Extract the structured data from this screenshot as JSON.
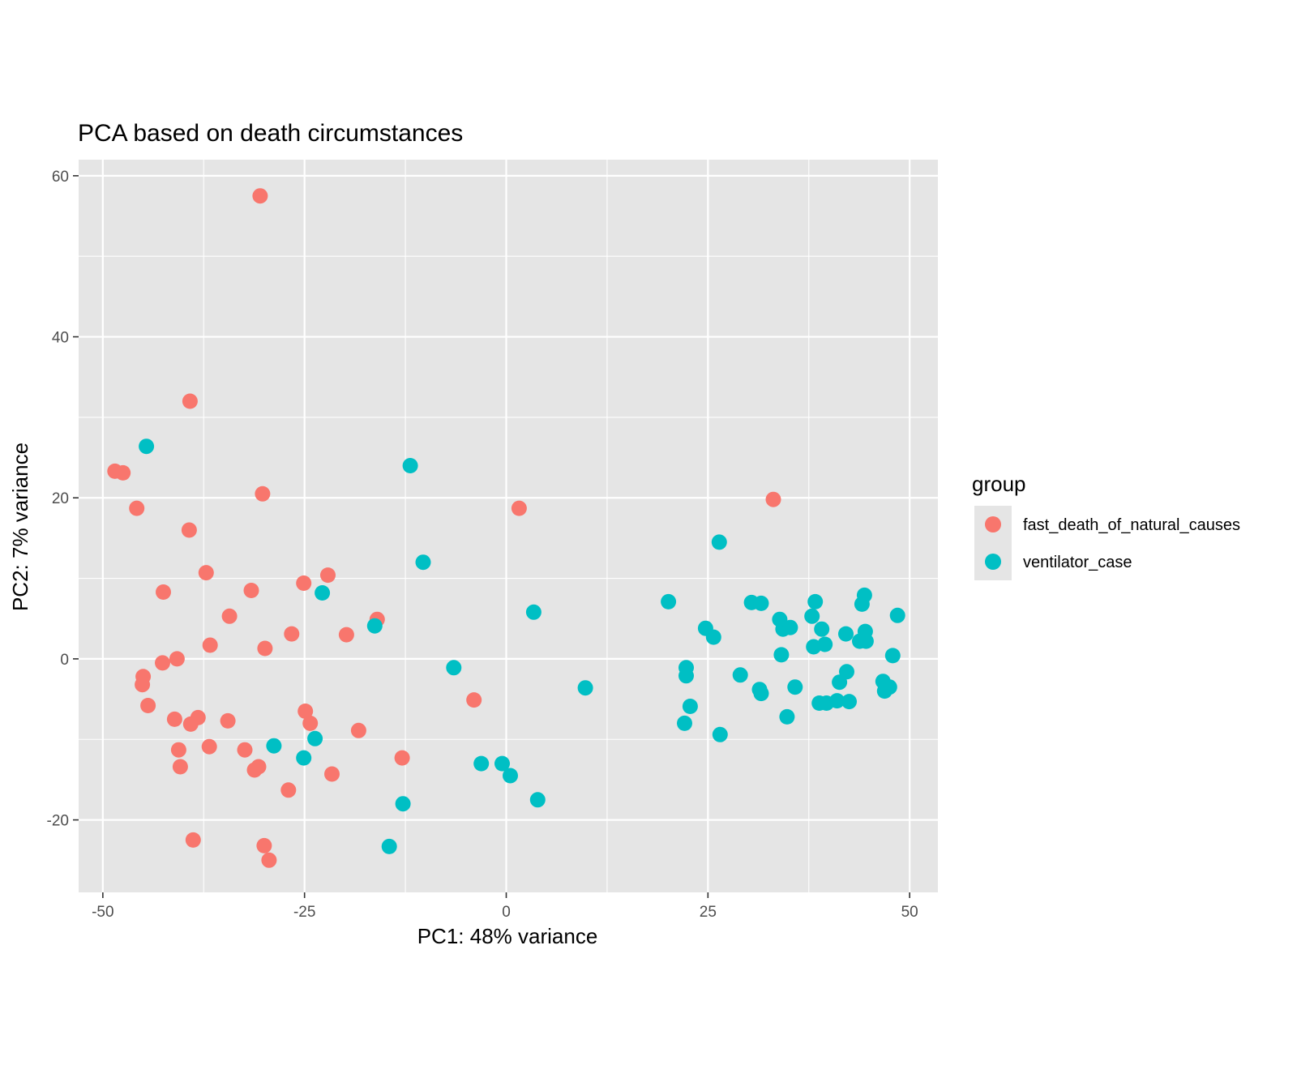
{
  "chart_data": {
    "type": "scatter",
    "title": "PCA based on death circumstances",
    "xlabel": "PC1: 48% variance",
    "ylabel": "PC2: 7% variance",
    "xlim": [
      -53,
      53.5
    ],
    "ylim": [
      -29,
      62
    ],
    "x_ticks": [
      -50,
      -25,
      0,
      25,
      50
    ],
    "x_tick_labels": [
      "-50",
      "-25",
      "0",
      "25",
      "50"
    ],
    "y_ticks": [
      -20,
      0,
      20,
      40,
      60
    ],
    "y_tick_labels": [
      "-20",
      "0",
      "20",
      "40",
      "60"
    ],
    "grid": true,
    "legend": {
      "title": "group",
      "position": "right"
    },
    "colors": {
      "panel_bg": "#e5e5e5",
      "grid": "#ffffff",
      "fast_death_of_natural_causes": "#f8766d",
      "ventilator_case": "#00bfc4"
    },
    "series": [
      {
        "name": "fast_death_of_natural_causes",
        "color": "#f8766d",
        "points": [
          [
            -30.5,
            57.5
          ],
          [
            -39.2,
            32
          ],
          [
            -48.5,
            23.3
          ],
          [
            -47.5,
            23.1
          ],
          [
            -45.8,
            18.7
          ],
          [
            -30.2,
            20.5
          ],
          [
            -39.3,
            16
          ],
          [
            -37.2,
            10.7
          ],
          [
            -42.5,
            8.3
          ],
          [
            -31.6,
            8.5
          ],
          [
            -25.1,
            9.4
          ],
          [
            -22.1,
            10.4
          ],
          [
            -34.3,
            5.3
          ],
          [
            -26.6,
            3.1
          ],
          [
            -19.8,
            3
          ],
          [
            -16,
            4.9
          ],
          [
            -36.7,
            1.7
          ],
          [
            -29.9,
            1.3
          ],
          [
            -42.6,
            -0.5
          ],
          [
            -40.8,
            0
          ],
          [
            -45,
            -2.2
          ],
          [
            -45.1,
            -3.2
          ],
          [
            -44.4,
            -5.8
          ],
          [
            -24.9,
            -6.5
          ],
          [
            -24.3,
            -8
          ],
          [
            -41.1,
            -7.5
          ],
          [
            -38.2,
            -7.3
          ],
          [
            -39.1,
            -8.1
          ],
          [
            -34.5,
            -7.7
          ],
          [
            -18.3,
            -8.9
          ],
          [
            -40.6,
            -11.3
          ],
          [
            -36.8,
            -10.9
          ],
          [
            -32.4,
            -11.3
          ],
          [
            -30.7,
            -13.4
          ],
          [
            -31.2,
            -13.8
          ],
          [
            -40.4,
            -13.4
          ],
          [
            -21.6,
            -14.3
          ],
          [
            -12.9,
            -12.3
          ],
          [
            -27,
            -16.3
          ],
          [
            -38.8,
            -22.5
          ],
          [
            -30,
            -23.2
          ],
          [
            -29.4,
            -25
          ],
          [
            -4,
            -5.1
          ],
          [
            1.6,
            18.7
          ],
          [
            33.1,
            19.8
          ]
        ]
      },
      {
        "name": "ventilator_case",
        "color": "#00bfc4",
        "points": [
          [
            -44.6,
            26.4
          ],
          [
            -11.9,
            24
          ],
          [
            -10.3,
            12
          ],
          [
            -22.8,
            8.2
          ],
          [
            -16.3,
            4.1
          ],
          [
            -28.8,
            -10.8
          ],
          [
            -25.1,
            -12.3
          ],
          [
            -23.7,
            -9.9
          ],
          [
            -6.5,
            -1.1
          ],
          [
            3.4,
            5.8
          ],
          [
            -3.1,
            -13
          ],
          [
            -0.5,
            -13
          ],
          [
            0.5,
            -14.5
          ],
          [
            -12.8,
            -18
          ],
          [
            -14.5,
            -23.3
          ],
          [
            3.9,
            -17.5
          ],
          [
            9.8,
            -3.6
          ],
          [
            20.1,
            7.1
          ],
          [
            26.4,
            14.5
          ],
          [
            24.7,
            3.8
          ],
          [
            25.7,
            2.7
          ],
          [
            22.3,
            -1.1
          ],
          [
            22.3,
            -2.1
          ],
          [
            22.8,
            -5.9
          ],
          [
            22.1,
            -8
          ],
          [
            26.5,
            -9.4
          ],
          [
            29,
            -2
          ],
          [
            30.4,
            7
          ],
          [
            31.6,
            6.9
          ],
          [
            31.4,
            -3.8
          ],
          [
            31.6,
            -4.3
          ],
          [
            33.9,
            4.9
          ],
          [
            34.3,
            3.7
          ],
          [
            35.2,
            3.9
          ],
          [
            34.1,
            0.5
          ],
          [
            35.8,
            -3.5
          ],
          [
            34.8,
            -7.2
          ],
          [
            38.3,
            7.1
          ],
          [
            37.9,
            5.3
          ],
          [
            39.1,
            3.7
          ],
          [
            38.1,
            1.5
          ],
          [
            39.5,
            1.8
          ],
          [
            42.1,
            3.1
          ],
          [
            38.8,
            -5.5
          ],
          [
            39.7,
            -5.5
          ],
          [
            41,
            -5.2
          ],
          [
            42.5,
            -5.3
          ],
          [
            41.3,
            -2.9
          ],
          [
            42.2,
            -1.6
          ],
          [
            44.4,
            7.9
          ],
          [
            44.1,
            6.8
          ],
          [
            44.5,
            3.4
          ],
          [
            43.8,
            2.2
          ],
          [
            44.6,
            2.2
          ],
          [
            46.7,
            -2.8
          ],
          [
            46.9,
            -4
          ],
          [
            47.5,
            -3.5
          ],
          [
            47.9,
            0.4
          ],
          [
            48.5,
            5.4
          ]
        ]
      }
    ]
  }
}
